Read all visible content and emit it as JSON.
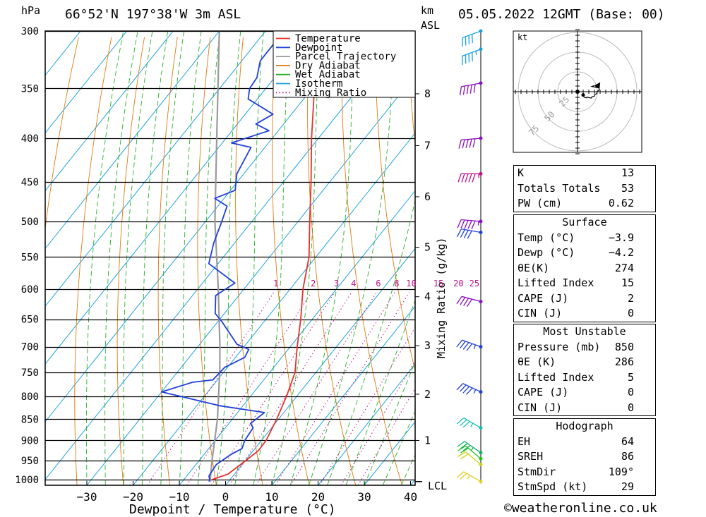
{
  "header": {
    "location": "66°52'N 197°38'W 3m ASL",
    "datetime": "05.05.2022 12GMT (Base: 00)",
    "hpa_unit": "hPa",
    "km_unit": "km",
    "asl_unit": "ASL"
  },
  "credit": "©weatheronline.co.uk",
  "legend": [
    {
      "label": "Temperature",
      "color": "#e8302a",
      "style": "solid"
    },
    {
      "label": "Dewpoint",
      "color": "#1f3fd8",
      "style": "solid"
    },
    {
      "label": "Parcel Trajectory",
      "color": "#9a9a9a",
      "style": "solid"
    },
    {
      "label": "Dry Adiabat",
      "color": "#e07a10",
      "style": "solid"
    },
    {
      "label": "Wet Adiabat",
      "color": "#2ab02a",
      "style": "solid"
    },
    {
      "label": "Isotherm",
      "color": "#1aa0e0",
      "style": "solid"
    },
    {
      "label": "Mixing Ratio",
      "color": "#c0108a",
      "style": "dotted"
    }
  ],
  "hodograph": {
    "unit_label": "kt",
    "ring_labels": [
      "25",
      "50",
      "75"
    ]
  },
  "stats": {
    "k": {
      "label": "K",
      "value": "13"
    },
    "tt": {
      "label": "Totals Totals",
      "value": "53"
    },
    "pw": {
      "label": "PW (cm)",
      "value": "0.62"
    },
    "surface_title": "Surface",
    "surface": [
      {
        "label": "Temp (°C)",
        "value": "−3.9"
      },
      {
        "label": "Dewp (°C)",
        "value": "−4.2"
      },
      {
        "label": "θE(K)",
        "value": "274"
      },
      {
        "label": "Lifted Index",
        "value": "15"
      },
      {
        "label": "CAPE (J)",
        "value": "2"
      },
      {
        "label": "CIN (J)",
        "value": "0"
      }
    ],
    "mu_title": "Most Unstable",
    "mu": [
      {
        "label": "Pressure (mb)",
        "value": "850"
      },
      {
        "label": "θE (K)",
        "value": "286"
      },
      {
        "label": "Lifted Index",
        "value": "5"
      },
      {
        "label": "CAPE (J)",
        "value": "0"
      },
      {
        "label": "CIN (J)",
        "value": "0"
      }
    ],
    "hodo_title": "Hodograph",
    "hodo": [
      {
        "label": "EH",
        "value": "64"
      },
      {
        "label": "SREH",
        "value": "86"
      },
      {
        "label": "StmDir",
        "value": "109°"
      },
      {
        "label": "StmSpd (kt)",
        "value": "29"
      }
    ]
  },
  "chart_data": {
    "type": "line",
    "subtype": "skew-T log-p sounding",
    "xlabel": "Dewpoint / Temperature (°C)",
    "ylabel_left": "hPa",
    "ylabel_right": "Mixing Ratio (g/kg)",
    "x_ticks": [
      -30,
      -20,
      -10,
      0,
      10,
      20,
      30,
      40
    ],
    "x_tick_labels": [
      "−30",
      "−20",
      "−10",
      "0",
      "10",
      "20",
      "30",
      "40"
    ],
    "pressure_levels": [
      300,
      350,
      400,
      450,
      500,
      550,
      600,
      650,
      700,
      750,
      800,
      850,
      900,
      950,
      1000
    ],
    "pressure_labels": [
      "300",
      "350",
      "400",
      "450",
      "500",
      "550",
      "600",
      "650",
      "700",
      "750",
      "800",
      "850",
      "900",
      "950",
      "1000"
    ],
    "y_scale": "log",
    "ylim": [
      1000,
      300
    ],
    "km_levels": [
      {
        "km": 1,
        "p": 900
      },
      {
        "km": 2,
        "p": 795
      },
      {
        "km": 3,
        "p": 698
      },
      {
        "km": 4,
        "p": 612
      },
      {
        "km": 5,
        "p": 536
      },
      {
        "km": 6,
        "p": 468
      },
      {
        "km": 7,
        "p": 408
      },
      {
        "km": 8,
        "p": 355
      }
    ],
    "km_labels": [
      "1",
      "2",
      "3",
      "4",
      "5",
      "6",
      "7",
      "8"
    ],
    "lcl_label": "LCL",
    "lcl_p": 1005,
    "mixing_ratio_labels": [
      "1",
      "2",
      "3",
      "4",
      "6",
      "8",
      "10",
      "15",
      "20",
      "25"
    ],
    "mixing_ratio_values": [
      1,
      2,
      3,
      4,
      6,
      8,
      10,
      15,
      20,
      25
    ],
    "series": [
      {
        "name": "Temperature",
        "points": [
          [
            1000,
            -3.9
          ],
          [
            985,
            -1.4
          ],
          [
            950,
            0.1
          ],
          [
            925,
            1.1
          ],
          [
            900,
            1.0
          ],
          [
            850,
            -0.4
          ],
          [
            800,
            -2.2
          ],
          [
            750,
            -4.5
          ],
          [
            700,
            -8.5
          ],
          [
            650,
            -12.5
          ],
          [
            600,
            -17.2
          ],
          [
            550,
            -21.5
          ],
          [
            500,
            -27.5
          ],
          [
            450,
            -34.0
          ],
          [
            400,
            -41.5
          ],
          [
            350,
            -49.5
          ],
          [
            340,
            -51.5
          ],
          [
            330,
            -53.0
          ],
          [
            320,
            -51.0
          ],
          [
            300,
            -52.5
          ]
        ]
      },
      {
        "name": "Dewpoint",
        "points": [
          [
            1005,
            -4.2
          ],
          [
            1000,
            -4.4
          ],
          [
            990,
            -5.2
          ],
          [
            960,
            -5.6
          ],
          [
            935,
            -4.2
          ],
          [
            920,
            -2.8
          ],
          [
            900,
            -3.6
          ],
          [
            870,
            -4.0
          ],
          [
            860,
            -5.3
          ],
          [
            835,
            -4.2
          ],
          [
            820,
            -15.0
          ],
          [
            790,
            -30.0
          ],
          [
            770,
            -25.0
          ],
          [
            765,
            -21.0
          ],
          [
            740,
            -20.6
          ],
          [
            720,
            -18.0
          ],
          [
            705,
            -18.5
          ],
          [
            695,
            -22.0
          ],
          [
            655,
            -29.0
          ],
          [
            640,
            -32.0
          ],
          [
            610,
            -35.0
          ],
          [
            590,
            -33.0
          ],
          [
            560,
            -42.0
          ],
          [
            530,
            -44.5
          ],
          [
            500,
            -46.5
          ],
          [
            480,
            -48.0
          ],
          [
            470,
            -52.0
          ],
          [
            460,
            -49.0
          ],
          [
            440,
            -51.5
          ],
          [
            410,
            -53.0
          ],
          [
            405,
            -58.0
          ],
          [
            392,
            -52.0
          ],
          [
            385,
            -56.0
          ],
          [
            375,
            -54.0
          ],
          [
            360,
            -62.0
          ],
          [
            350,
            -63.5
          ],
          [
            340,
            -63.8
          ],
          [
            325,
            -66.0
          ],
          [
            310,
            -66.0
          ],
          [
            300,
            -68.0
          ]
        ]
      }
    ],
    "parcel": {
      "name": "Parcel Trajectory",
      "points": [
        [
          1005,
          -4.0
        ],
        [
          950,
          -7.2
        ],
        [
          850,
          -13.2
        ],
        [
          750,
          -20.8
        ],
        [
          700,
          -25.2
        ],
        [
          600,
          -35.5
        ],
        [
          500,
          -48.0
        ],
        [
          400,
          -62.0
        ],
        [
          300,
          -80.0
        ]
      ]
    },
    "wind_profile": [
      {
        "p": 300,
        "dir": 250,
        "spd": 40,
        "color": "#1aa0e0"
      },
      {
        "p": 315,
        "dir": 250,
        "spd": 35,
        "color": "#1aa0e0"
      },
      {
        "p": 345,
        "dir": 260,
        "spd": 50,
        "color": "#8a10c0"
      },
      {
        "p": 400,
        "dir": 265,
        "spd": 50,
        "color": "#8a10c0"
      },
      {
        "p": 440,
        "dir": 270,
        "spd": 45,
        "color": "#c0108a"
      },
      {
        "p": 500,
        "dir": 275,
        "spd": 45,
        "color": "#8a10c0"
      },
      {
        "p": 515,
        "dir": 280,
        "spd": 40,
        "color": "#1f3fd8"
      },
      {
        "p": 620,
        "dir": 285,
        "spd": 40,
        "color": "#8a10c0"
      },
      {
        "p": 700,
        "dir": 290,
        "spd": 35,
        "color": "#1f3fd8"
      },
      {
        "p": 790,
        "dir": 295,
        "spd": 35,
        "color": "#1f3fd8"
      },
      {
        "p": 870,
        "dir": 300,
        "spd": 25,
        "color": "#10c0b0"
      },
      {
        "p": 930,
        "dir": 305,
        "spd": 25,
        "color": "#10b060"
      },
      {
        "p": 945,
        "dir": 310,
        "spd": 20,
        "color": "#20c020"
      },
      {
        "p": 960,
        "dir": 310,
        "spd": 20,
        "color": "#d0d010"
      },
      {
        "p": 1005,
        "dir": 300,
        "spd": 15,
        "color": "#e0d020"
      }
    ]
  }
}
